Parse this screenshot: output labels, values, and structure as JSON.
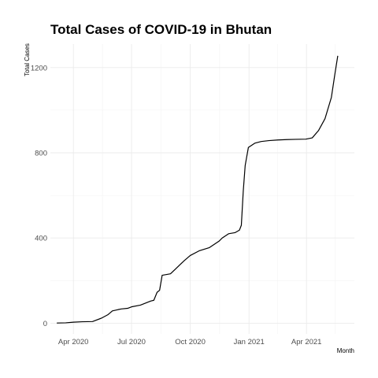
{
  "chart_data": {
    "type": "line",
    "title": "Total Cases of COVID-19 in Bhutan",
    "xlabel": "Month",
    "ylabel": "Total Cases",
    "x_is_date": true,
    "xlim": [
      "2020-02-25",
      "2021-06-15"
    ],
    "ylim": [
      -50,
      1310
    ],
    "y_ticks": [
      0,
      400,
      800,
      1200
    ],
    "x_ticks": [
      {
        "label": "Apr 2020",
        "date": "2020-04-01"
      },
      {
        "label": "Jul 2020",
        "date": "2020-07-01"
      },
      {
        "label": "Oct 2020",
        "date": "2020-10-01"
      },
      {
        "label": "Jan 2021",
        "date": "2021-01-01"
      },
      {
        "label": "Apr 2021",
        "date": "2021-04-01"
      }
    ],
    "grid": true,
    "legend": "none",
    "series": [
      {
        "x": [
          "2020-03-06",
          "2020-03-20",
          "2020-04-01",
          "2020-04-15",
          "2020-05-01",
          "2020-05-15",
          "2020-05-25",
          "2020-06-01",
          "2020-06-10",
          "2020-06-15",
          "2020-06-25",
          "2020-07-01",
          "2020-07-15",
          "2020-07-31",
          "2020-08-05",
          "2020-08-10",
          "2020-08-14",
          "2020-08-18",
          "2020-08-31",
          "2020-09-07",
          "2020-09-15",
          "2020-09-22",
          "2020-10-01",
          "2020-10-15",
          "2020-10-31",
          "2020-11-15",
          "2020-11-20",
          "2020-11-30",
          "2020-12-10",
          "2020-12-17",
          "2020-12-20",
          "2020-12-23",
          "2020-12-26",
          "2020-12-31",
          "2021-01-10",
          "2021-01-20",
          "2021-02-01",
          "2021-02-15",
          "2021-03-01",
          "2021-03-15",
          "2021-03-31",
          "2021-04-10",
          "2021-04-20",
          "2021-04-30",
          "2021-05-10",
          "2021-05-15",
          "2021-05-20"
        ],
        "y": [
          1,
          2,
          5,
          7,
          8,
          24,
          40,
          58,
          64,
          67,
          70,
          77,
          85,
          104,
          108,
          145,
          155,
          225,
          232,
          252,
          275,
          295,
          318,
          340,
          355,
          385,
          400,
          420,
          425,
          437,
          460,
          620,
          740,
          825,
          845,
          853,
          857,
          860,
          862,
          863,
          864,
          870,
          905,
          960,
          1060,
          1160,
          1255
        ]
      }
    ]
  }
}
